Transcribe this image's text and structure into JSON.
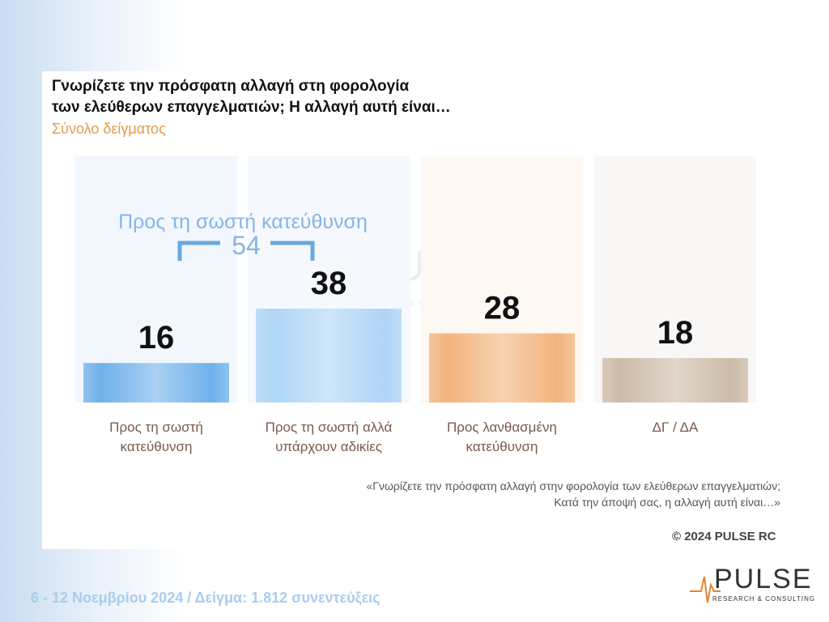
{
  "chart_data": {
    "type": "bar",
    "title": [
      "Γνωρίζετε την πρόσφατη αλλαγή στη φορολογία",
      "των ελεύθερων επαγγελματιών; Η αλλαγή αυτή είναι…"
    ],
    "subtitle": "Σύνολο δείγματος",
    "categories": [
      "Προς τη σωστή κατεύθυνση",
      "Προς τη σωστή αλλά υπάρχουν αδικίες",
      "Προς λανθασμένη κατεύθυνση",
      "ΔΓ / ΔΑ"
    ],
    "values": [
      16,
      38,
      28,
      18
    ],
    "colors": [
      "#6fb1ea",
      "#aed5f6",
      "#f2b47c",
      "#cdbba8"
    ],
    "annotation": {
      "label": "Προς τη σωστή κατεύθυνση",
      "value": 54
    },
    "footnote": [
      "«Γνωρίζετε την πρόσφατη αλλαγή στην φορολογία των ελεύθερων επαγγελματιών;",
      "Κατά την άποψή σας, η αλλαγή αυτή είναι…»"
    ],
    "copyright": "© 2024 PULSE RC",
    "fieldwork": "6 - 12  Νοεμβρίου  2024  /  Δείγμα:  1.812 συνεντεύξεις",
    "logo": {
      "name": "PULSE",
      "tagline": "RESEARCH & CONSULTING"
    }
  }
}
